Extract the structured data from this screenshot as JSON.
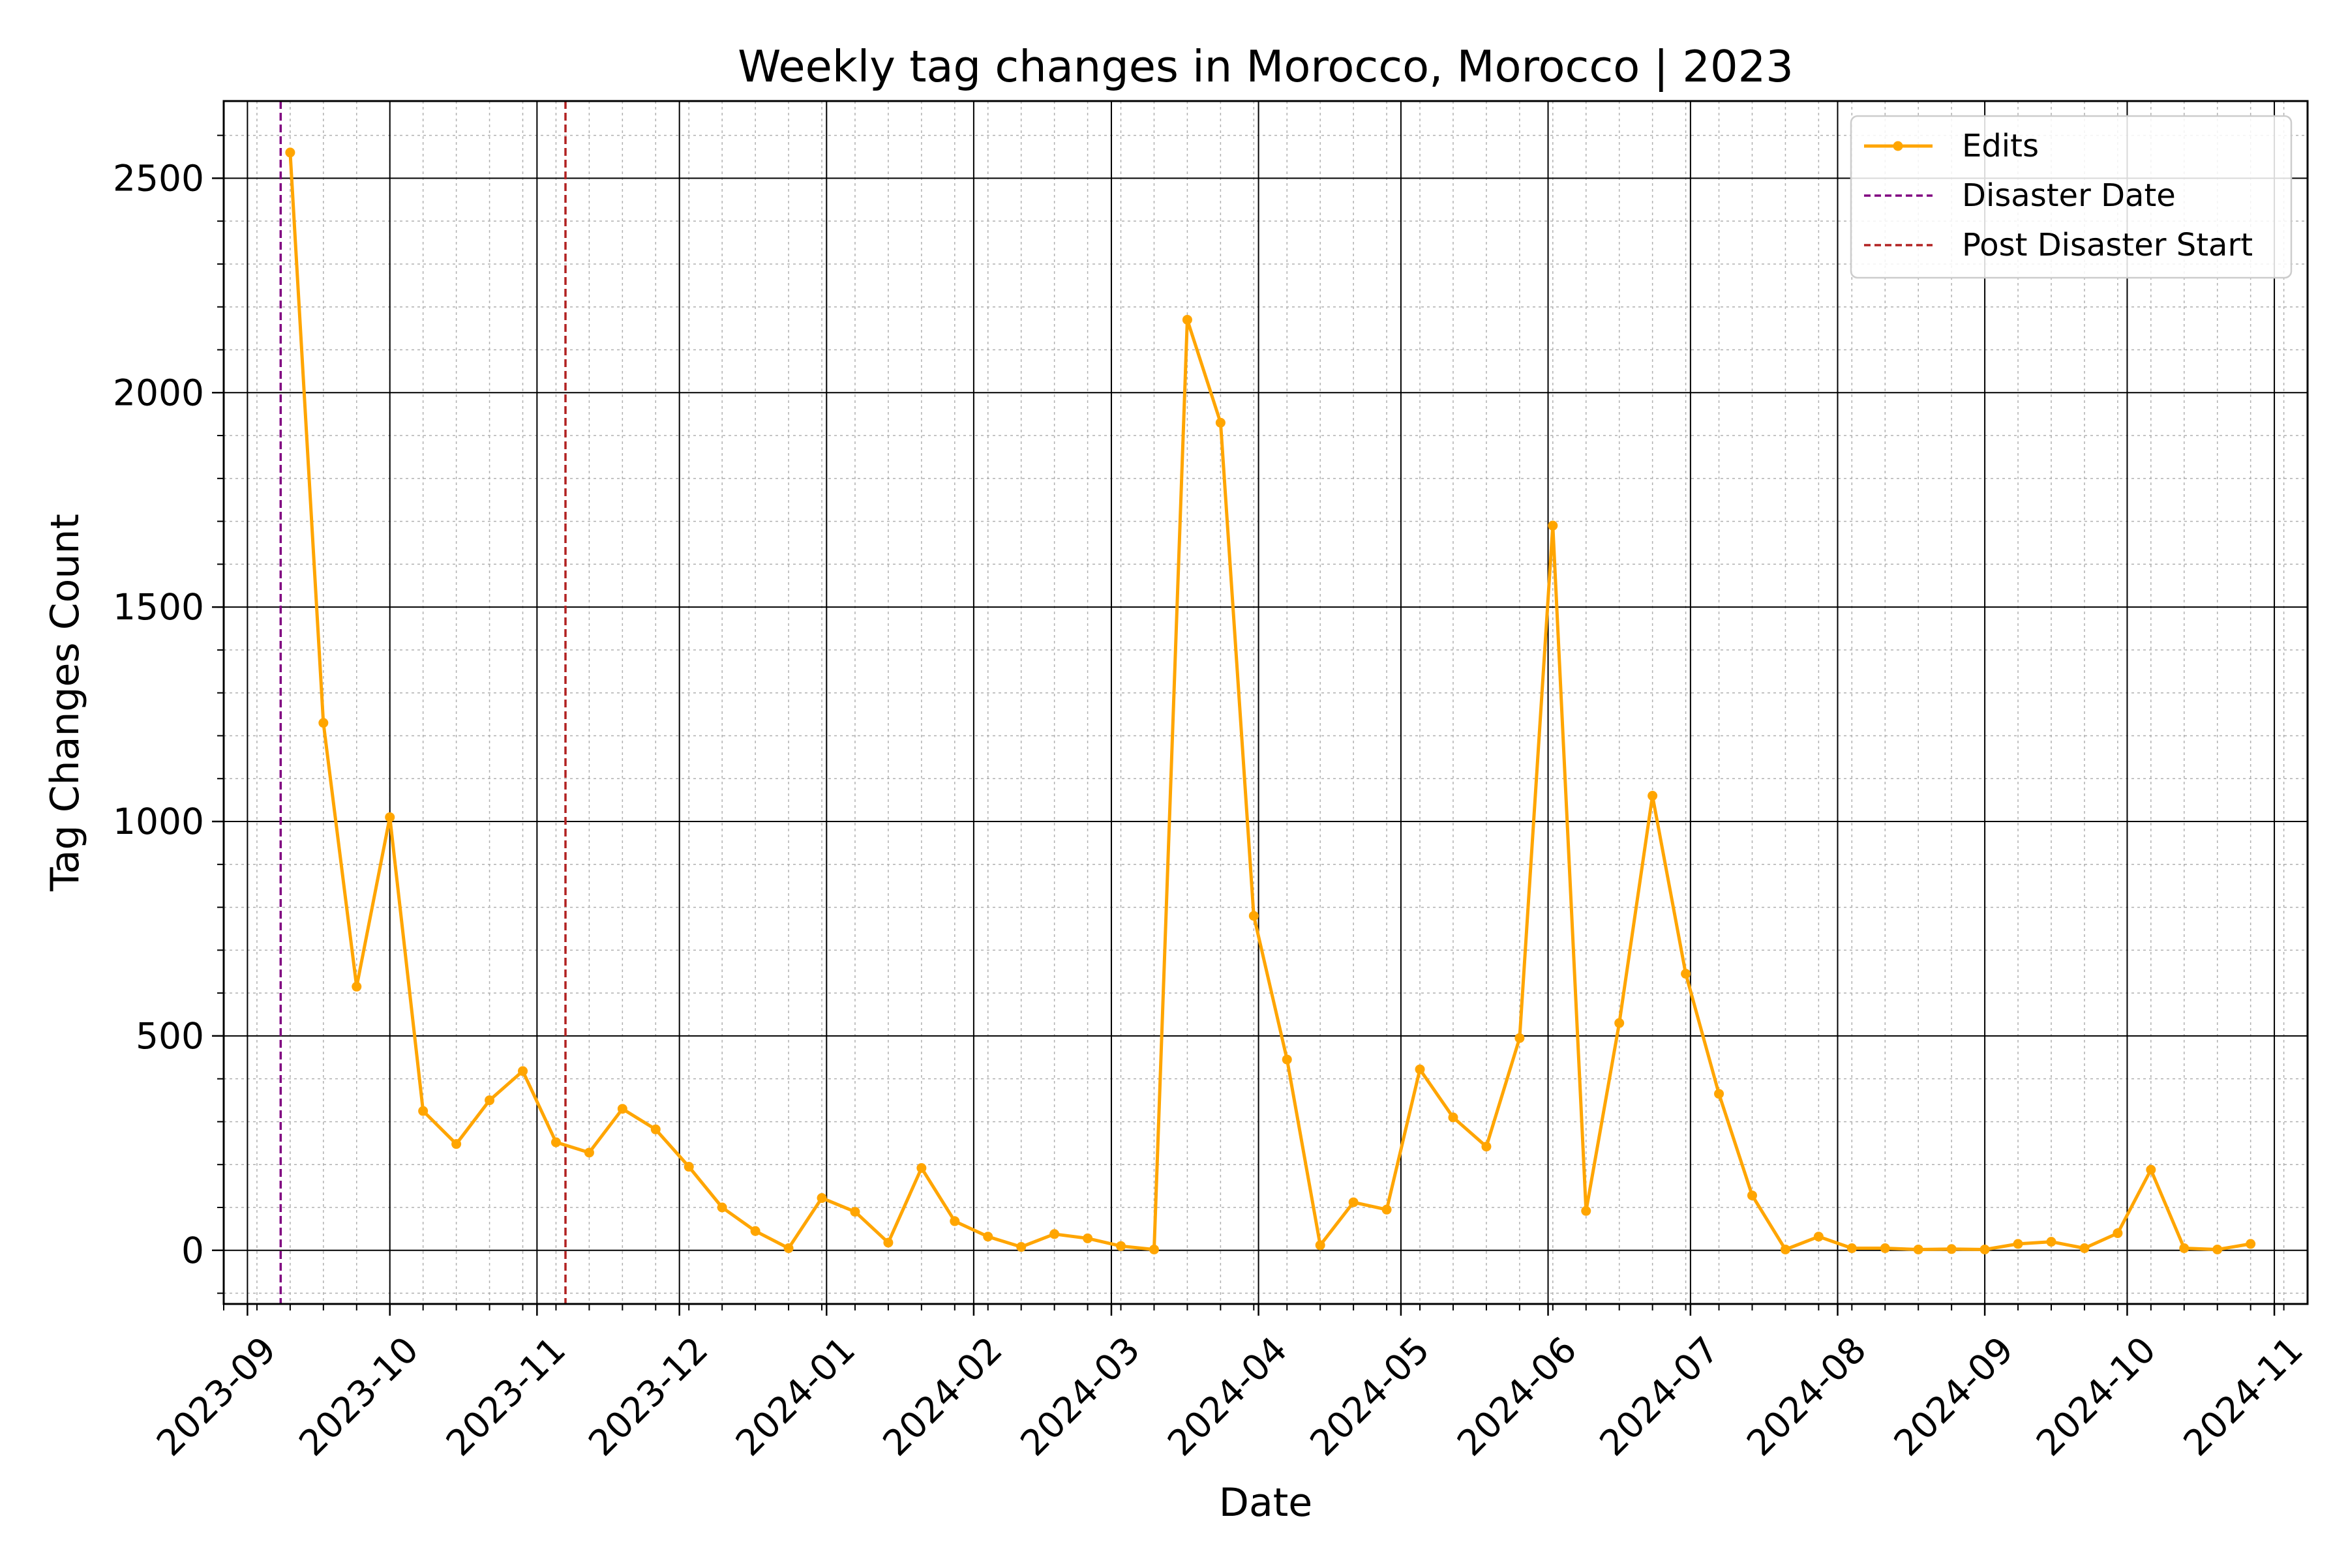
{
  "chart_data": {
    "type": "line",
    "title": "Weekly tag changes in Morocco, Morocco | 2023",
    "xlabel": "Date",
    "ylabel": "Tag Changes Count",
    "x_axis": {
      "type": "date",
      "range": [
        "2023-08-27",
        "2024-11-08"
      ],
      "ticks": [
        "2023-09-01",
        "2023-10-01",
        "2023-11-01",
        "2023-12-01",
        "2024-01-01",
        "2024-02-01",
        "2024-03-01",
        "2024-04-01",
        "2024-05-01",
        "2024-06-01",
        "2024-07-01",
        "2024-08-01",
        "2024-09-01",
        "2024-10-01",
        "2024-11-01"
      ],
      "tick_labels": [
        "2023-09",
        "2023-10",
        "2023-11",
        "2023-12",
        "2024-01",
        "2024-02",
        "2024-03",
        "2024-04",
        "2024-05",
        "2024-06",
        "2024-07",
        "2024-08",
        "2024-09",
        "2024-10",
        "2024-11"
      ]
    },
    "y_axis": {
      "range": [
        -125,
        2680
      ],
      "ticks": [
        0,
        500,
        1000,
        1500,
        2000,
        2500
      ],
      "tick_labels": [
        "0",
        "500",
        "1000",
        "1500",
        "2000",
        "2500"
      ]
    },
    "grid": {
      "major": true,
      "minor": true
    },
    "legend": {
      "placement": "top-right"
    },
    "series": [
      {
        "name": "Edits",
        "color": "#FFA500",
        "marker": "circle",
        "x": [
          "2023-09-10",
          "2023-09-17",
          "2023-09-24",
          "2023-10-01",
          "2023-10-08",
          "2023-10-15",
          "2023-10-22",
          "2023-10-29",
          "2023-11-05",
          "2023-11-12",
          "2023-11-19",
          "2023-11-26",
          "2023-12-03",
          "2023-12-10",
          "2023-12-17",
          "2023-12-24",
          "2023-12-31",
          "2024-01-07",
          "2024-01-14",
          "2024-01-21",
          "2024-01-28",
          "2024-02-04",
          "2024-02-11",
          "2024-02-18",
          "2024-02-25",
          "2024-03-03",
          "2024-03-10",
          "2024-03-17",
          "2024-03-24",
          "2024-03-31",
          "2024-04-07",
          "2024-04-14",
          "2024-04-21",
          "2024-04-28",
          "2024-05-05",
          "2024-05-12",
          "2024-05-19",
          "2024-05-26",
          "2024-06-02",
          "2024-06-09",
          "2024-06-16",
          "2024-06-23",
          "2024-06-30",
          "2024-07-07",
          "2024-07-14",
          "2024-07-21",
          "2024-07-28",
          "2024-08-04",
          "2024-08-11",
          "2024-08-18",
          "2024-08-25",
          "2024-09-01",
          "2024-09-08",
          "2024-09-15",
          "2024-09-22",
          "2024-09-29",
          "2024-10-06",
          "2024-10-13",
          "2024-10-20",
          "2024-10-27"
        ],
        "y": [
          2560,
          1230,
          615,
          1010,
          325,
          248,
          350,
          418,
          252,
          228,
          330,
          282,
          195,
          100,
          45,
          5,
          122,
          90,
          18,
          192,
          68,
          32,
          8,
          38,
          28,
          10,
          2,
          2170,
          1930,
          780,
          445,
          12,
          112,
          95,
          422,
          310,
          242,
          495,
          1690,
          92,
          530,
          1060,
          645,
          365,
          128,
          2,
          32,
          5,
          5,
          2,
          3,
          2,
          15,
          20,
          5,
          40,
          188,
          5,
          2,
          15
        ]
      }
    ],
    "vlines": [
      {
        "name": "Disaster Date",
        "x": "2023-09-08",
        "color": "#800080",
        "style": "dashed"
      },
      {
        "name": "Post Disaster Start",
        "x": "2023-11-07",
        "color": "#B22222",
        "style": "dashed"
      }
    ]
  }
}
